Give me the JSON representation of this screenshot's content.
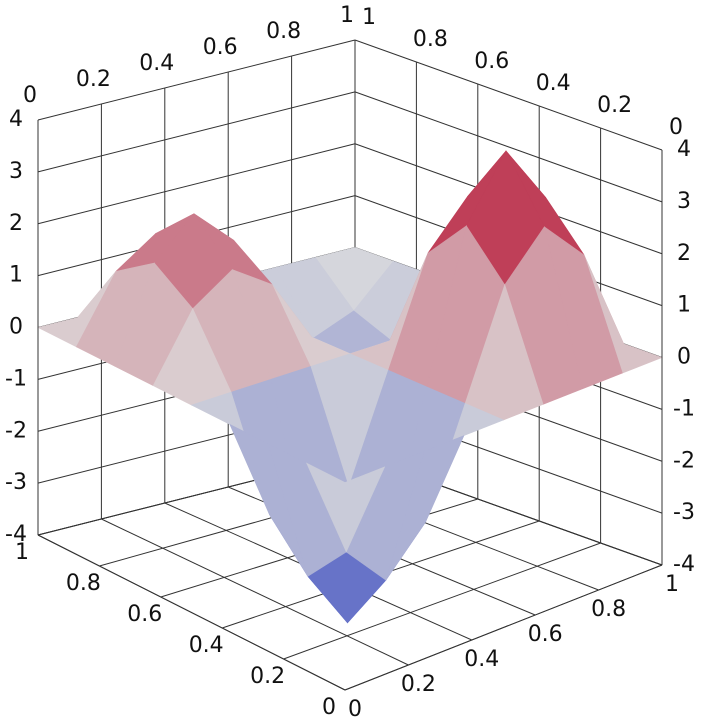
{
  "chart_data": {
    "type": "surface3d",
    "x": [
      0,
      0.125,
      0.25,
      0.375,
      0.5,
      0.625,
      0.75,
      0.875,
      1
    ],
    "y": [
      0,
      0.125,
      0.25,
      0.375,
      0.5,
      0.625,
      0.75,
      0.875,
      1
    ],
    "z": [
      [
        0,
        0,
        0,
        0,
        0,
        0,
        0,
        0,
        0
      ],
      [
        0,
        -2,
        -2.83,
        -2,
        0,
        2,
        2.83,
        2,
        0
      ],
      [
        0,
        -2.83,
        -4,
        -2.83,
        0,
        2.83,
        4,
        2.83,
        0
      ],
      [
        0,
        -2,
        -2.83,
        -2,
        0,
        2,
        2.83,
        2,
        0
      ],
      [
        0,
        0,
        0,
        0,
        0,
        0,
        0,
        0,
        0
      ],
      [
        0,
        1.25,
        1.77,
        1.25,
        0,
        -0.75,
        -1.06,
        -0.75,
        0
      ],
      [
        0,
        1.77,
        2.5,
        1.77,
        0,
        -1.06,
        -1.5,
        -1.06,
        0
      ],
      [
        0,
        1.25,
        1.77,
        1.25,
        0,
        -0.75,
        -1.06,
        -0.75,
        0
      ],
      [
        0,
        0,
        0,
        0,
        0,
        0,
        0,
        0,
        0
      ]
    ],
    "xlim": [
      0,
      1
    ],
    "ylim": [
      0,
      1
    ],
    "zlim": [
      -4,
      4
    ],
    "xticks": [
      0,
      0.2,
      0.4,
      0.6,
      0.8,
      1
    ],
    "yticks": [
      0,
      0.2,
      0.4,
      0.6,
      0.8,
      1
    ],
    "zticks": [
      -4,
      -3,
      -2,
      -1,
      0,
      1,
      2,
      3,
      4
    ],
    "colormap": [
      "#3b4cc0",
      "#dddddd",
      "#b40426"
    ],
    "grid": true
  }
}
